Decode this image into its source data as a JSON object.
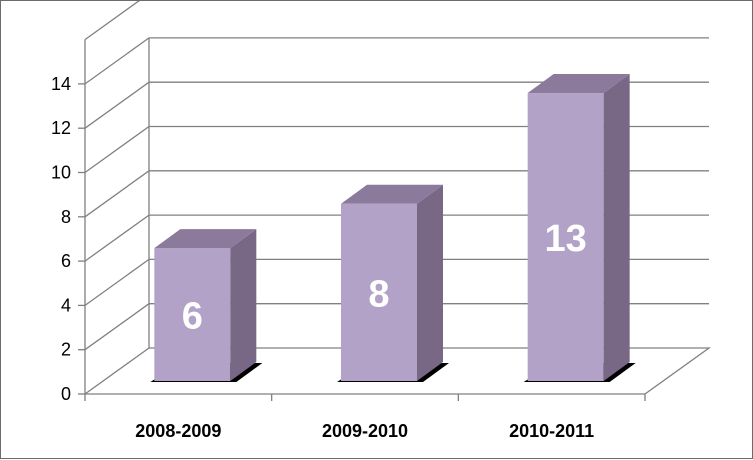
{
  "chart_data": {
    "type": "bar",
    "categories": [
      "2008-2009",
      "2009-2010",
      "2010-2011"
    ],
    "values": [
      6,
      8,
      13
    ],
    "title": "",
    "xlabel": "",
    "ylabel": "",
    "ylim": [
      0,
      14
    ],
    "yticks": [
      "0",
      "2",
      "4",
      "6",
      "8",
      "10",
      "12",
      "14"
    ],
    "data_labels": [
      "6",
      "8",
      "13"
    ],
    "grid": true,
    "style": "3d-column",
    "colors": {
      "bar_front": "#b3a2c7",
      "bar_side": "#786886",
      "bar_top": "#8c7a9c",
      "shadow": "#000000",
      "grid": "#808080"
    }
  }
}
